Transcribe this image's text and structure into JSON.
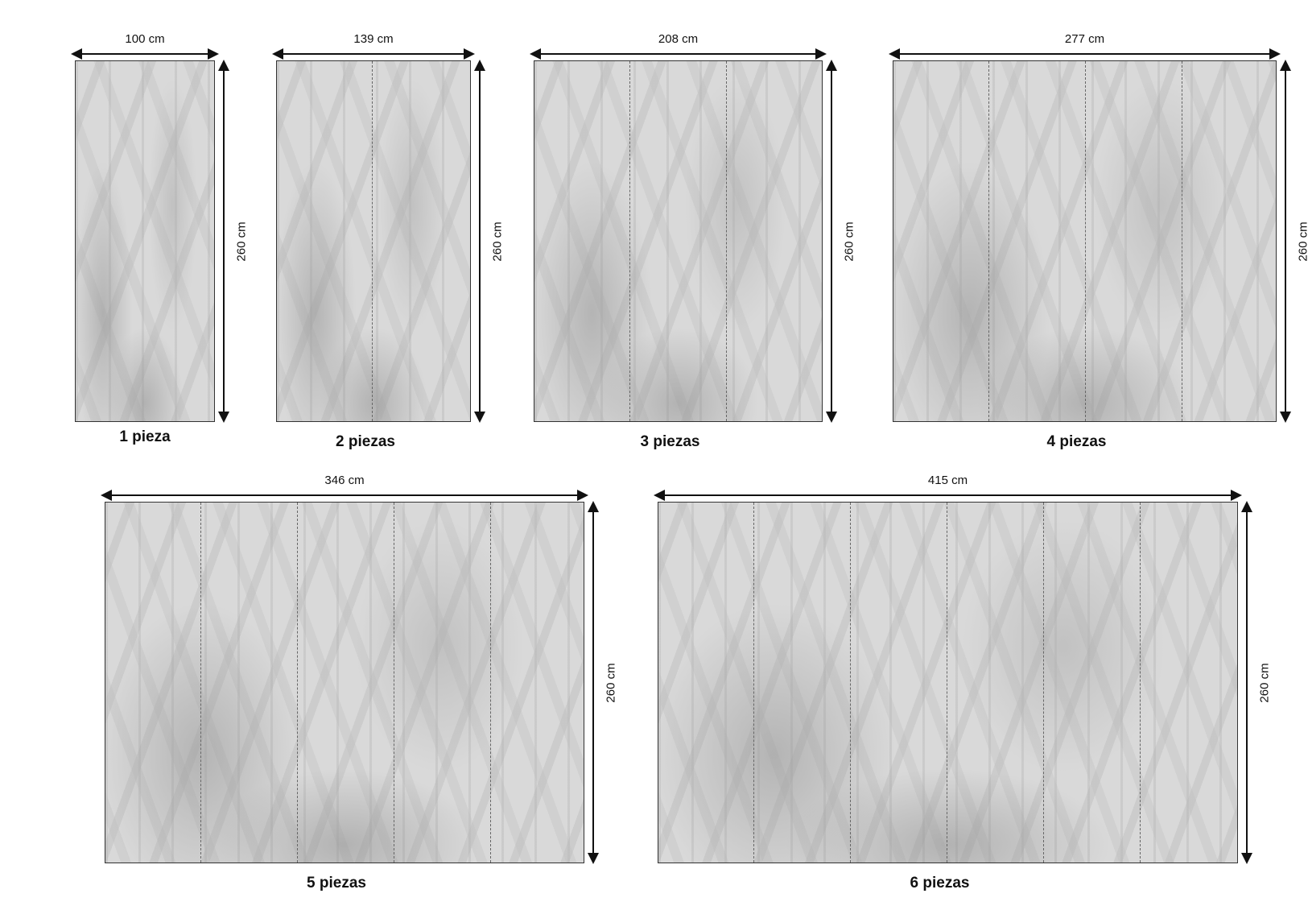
{
  "options": [
    {
      "pieces_label": "1 pieza",
      "width": "100 cm",
      "height": "260 cm",
      "pieces": 1
    },
    {
      "pieces_label": "2 piezas",
      "width": "139 cm",
      "height": "260 cm",
      "pieces": 2
    },
    {
      "pieces_label": "3 piezas",
      "width": "208 cm",
      "height": "260 cm",
      "pieces": 3
    },
    {
      "pieces_label": "4 piezas",
      "width": "277 cm",
      "height": "260 cm",
      "pieces": 4
    },
    {
      "pieces_label": "5 piezas",
      "width": "346 cm",
      "height": "260 cm",
      "pieces": 5
    },
    {
      "pieces_label": "6 piezas",
      "width": "415 cm",
      "height": "260 cm",
      "pieces": 6
    }
  ],
  "colors": {
    "panel": "#d9d9d9",
    "arrow": "#111111",
    "seam": "#666666"
  }
}
